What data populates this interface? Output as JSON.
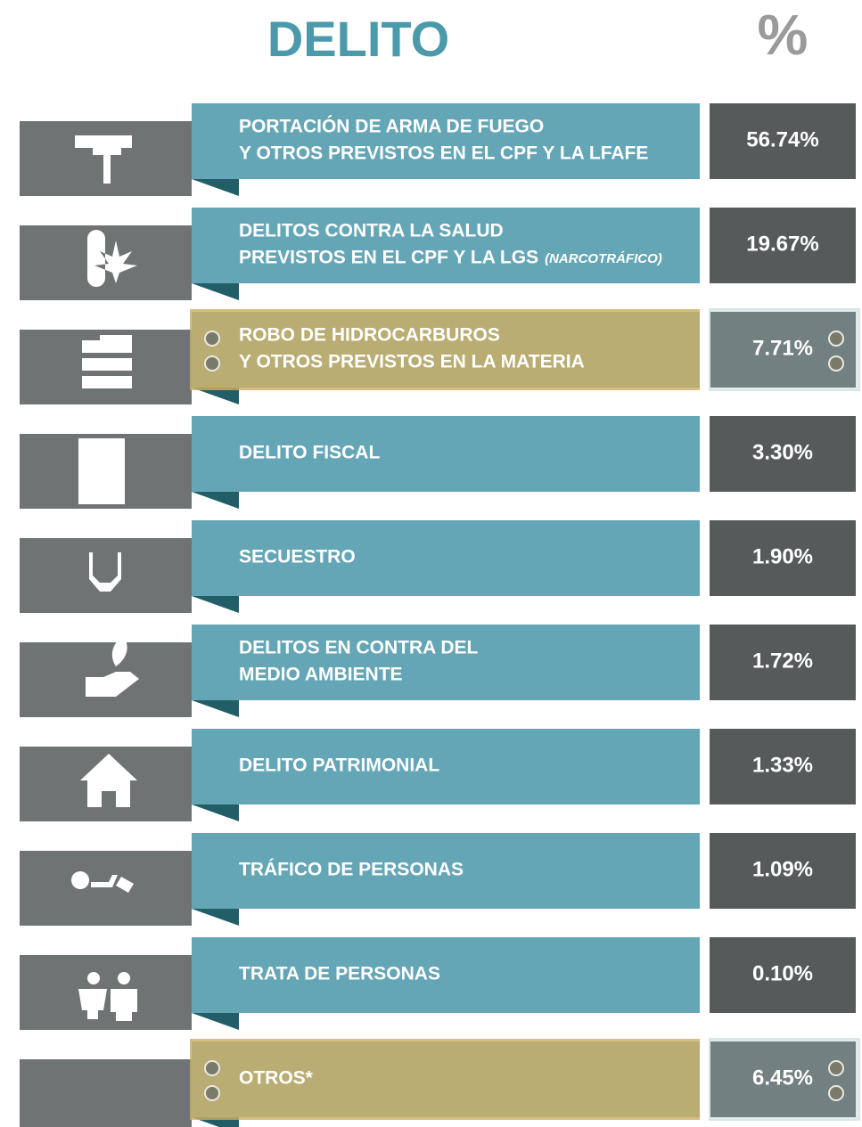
{
  "header": {
    "title": "DELITO",
    "percent": "%"
  },
  "rows": [
    {
      "lines": [
        "PORTACIÓN DE ARMA DE FUEGO",
        "Y OTROS PREVISTOS EN EL CPF Y LA LFAFE"
      ],
      "value": "56.74%"
    },
    {
      "lines": [
        "DELITOS CONTRA LA SALUD",
        "PREVISTOS EN EL CPF Y LA LGS"
      ],
      "note": "(NARCOTRÁFICO)",
      "value": "19.67%"
    },
    {
      "lines": [
        "ROBO DE HIDROCARBUROS",
        "Y OTROS PREVISTOS EN LA MATERIA"
      ],
      "value": "7.71%",
      "highlight": true
    },
    {
      "lines": [
        "DELITO FISCAL"
      ],
      "value": "3.30%"
    },
    {
      "lines": [
        "SECUESTRO"
      ],
      "value": "1.90%"
    },
    {
      "lines": [
        "DELITOS EN CONTRA DEL",
        "MEDIO AMBIENTE"
      ],
      "value": "1.72%"
    },
    {
      "lines": [
        "DELITO PATRIMONIAL"
      ],
      "value": "1.33%"
    },
    {
      "lines": [
        "TRÁFICO DE PERSONAS"
      ],
      "value": "1.09%"
    },
    {
      "lines": [
        "TRATA DE PERSONAS"
      ],
      "value": "0.10%"
    },
    {
      "lines": [
        "OTROS*"
      ],
      "value": "6.45%",
      "highlight": true
    }
  ]
}
